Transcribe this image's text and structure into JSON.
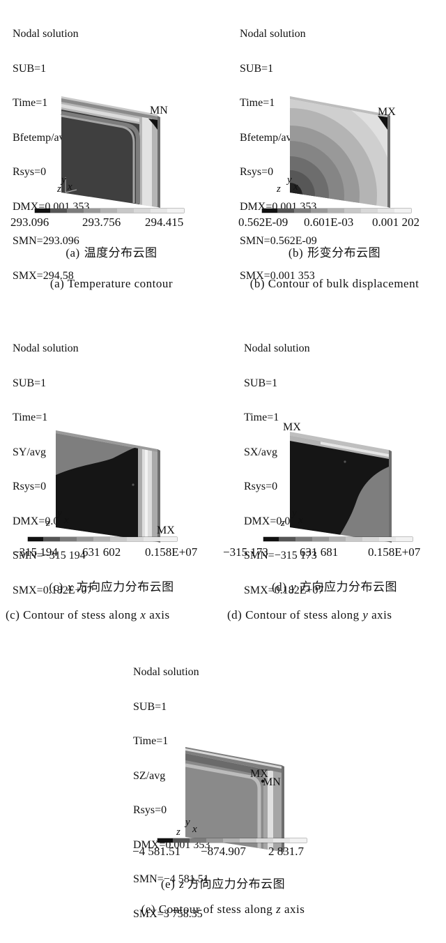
{
  "panels": [
    {
      "info": [
        "Nodal solution",
        "SUB=1",
        "Time=1",
        "Bfetemp/avg",
        "Rsys=0",
        "DMX=0.001 353",
        "SMN=293.096",
        "SMX=294.58"
      ],
      "marker": "MN",
      "ticks": [
        "293.096",
        "293.756",
        "294.415"
      ],
      "caption_zh": {
        "label": "(a)",
        "text": "温度分布云图"
      },
      "caption_en": "(a) Temperature contour"
    },
    {
      "info": [
        "Nodal solution",
        "SUB=1",
        "Time=1",
        "Bfetemp/avg",
        "Rsys=0",
        "DMX=0.001 353",
        "SMN=0.562E-09",
        "SMX=0.001 353"
      ],
      "marker": "MX",
      "ticks": [
        "0.562E-09",
        "0.601E-03",
        "0.001 202"
      ],
      "caption_zh": {
        "label": "(b)",
        "text": "形变分布云图"
      },
      "caption_en": "(b) Contour of bulk displacement"
    },
    {
      "info": [
        "Nodal solution",
        "SUB=1",
        "Time=1",
        "SY/avg",
        "Rsys=0",
        "DMX=0.001 353",
        "SMN=−315 194",
        "SMX=0.182E+07"
      ],
      "marker": "MX",
      "ticks": [
        "−315 194",
        "631 602",
        "0.158E+07"
      ],
      "caption_zh": {
        "label": "(c)",
        "var": "x",
        "text": "方向应力分布云图"
      },
      "caption_en": {
        "prefix": "(c) Contour of stess along",
        "var": "x",
        "suffix": "axis"
      }
    },
    {
      "info": [
        "Nodal solution",
        "SUB=1",
        "Time=1",
        "SX/avg",
        "Rsys=0",
        "DMX=0.001 353",
        "SMN=−315 173",
        "SMX=0.182E+07"
      ],
      "marker": "MX",
      "ticks": [
        "−315 173",
        "631 681",
        "0.158E+07"
      ],
      "caption_zh": {
        "label": "(d)",
        "var": "y",
        "text": "方向应力分布云图"
      },
      "caption_en": {
        "prefix": "(d) Contour of stess along",
        "var": "y",
        "suffix": "axis"
      }
    },
    {
      "info": [
        "Nodal solution",
        "SUB=1",
        "Time=1",
        "SZ/avg",
        "Rsys=0",
        "DMX=0.001 353",
        "SMN=−4 581.51",
        "SMX=3 758.35"
      ],
      "markers": [
        "MX",
        "MN"
      ],
      "ticks": [
        "−4 581.51",
        "−874.907",
        "2 831.7"
      ],
      "caption_zh": {
        "label": "(e)",
        "var": "z",
        "text": "方向应力分布云图"
      },
      "caption_en": {
        "prefix": "(e) Contour of stess along",
        "var": "z",
        "suffix": "axis"
      }
    }
  ],
  "axis_labels": {
    "z": "z",
    "y": "y",
    "x": "x"
  }
}
